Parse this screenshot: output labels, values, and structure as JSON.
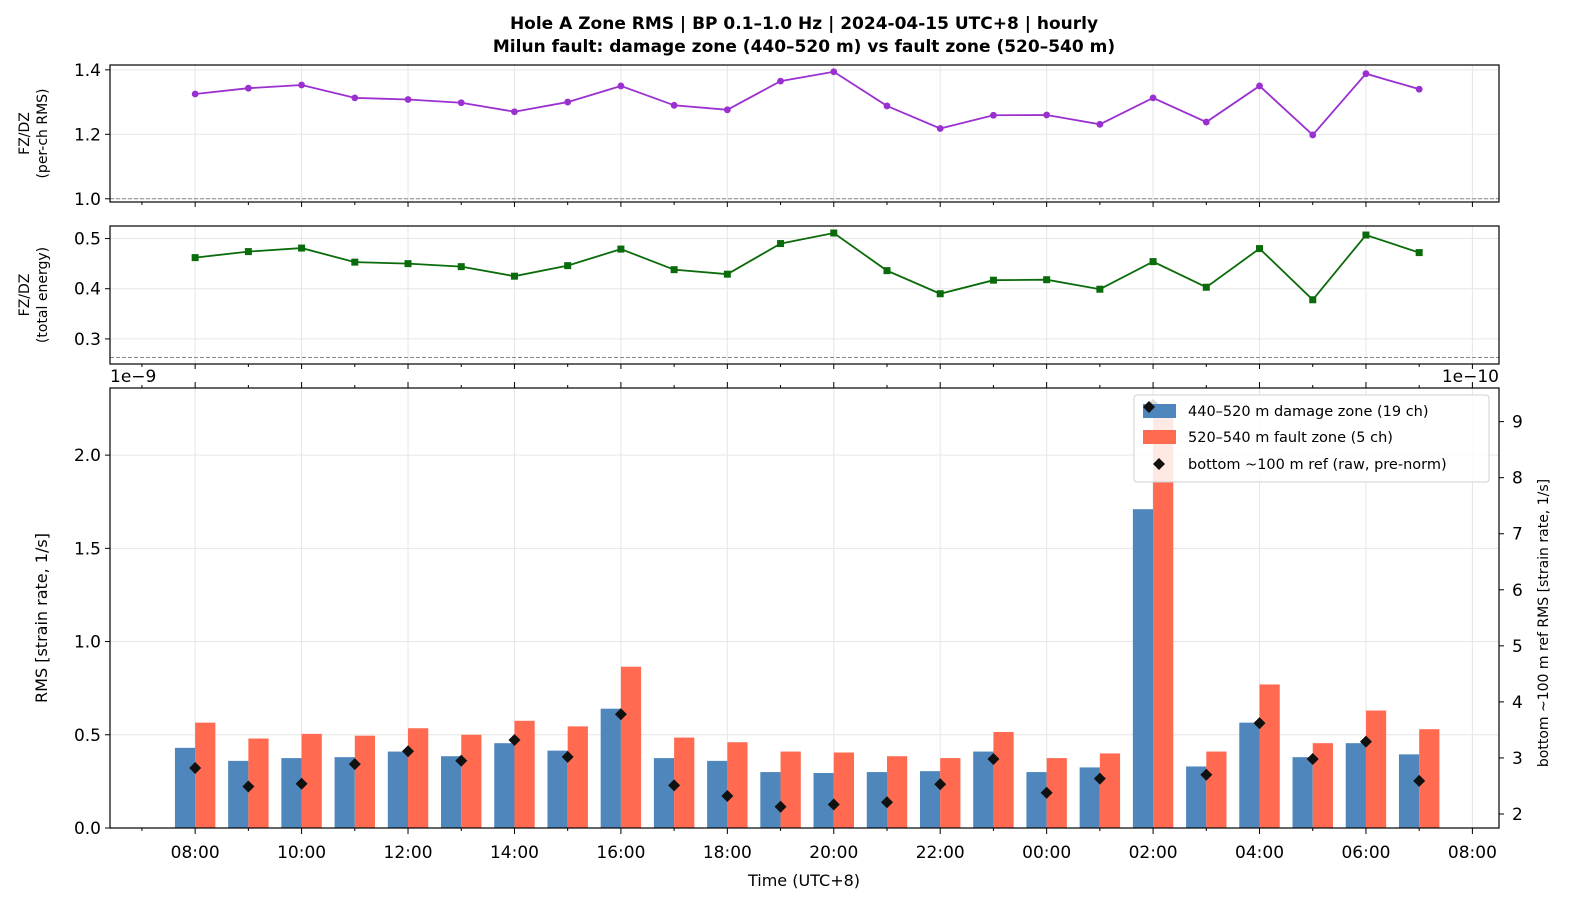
{
  "title_line1": "Hole A Zone RMS  |  BP 0.1–1.0 Hz  |  2024-04-15 UTC+8  |  hourly",
  "title_line2": "Milun fault: damage zone (440–520 m) vs fault zone (520–540 m)",
  "colors": {
    "ratio_rms": "#9b30d0",
    "ratio_energy": "#0a6b0a",
    "damage_zone": "#4f87bd",
    "fault_zone": "#ff6a50",
    "ref_marker": "#111111",
    "grid": "#e6e6e6"
  },
  "chart_data": [
    {
      "type": "line",
      "panel": "ratio_rms",
      "ylabel_line1": "FZ/DZ",
      "ylabel_line2": "(per-ch RMS)",
      "ylim": [
        0.99,
        1.415
      ],
      "yticks": [
        1.0,
        1.2,
        1.4
      ],
      "yticklabels": [
        "1.0",
        "1.2",
        "1.4"
      ],
      "reference_line": 1.0,
      "grid": true,
      "x": [
        "08:00",
        "09:00",
        "10:00",
        "11:00",
        "12:00",
        "13:00",
        "14:00",
        "15:00",
        "16:00",
        "17:00",
        "18:00",
        "19:00",
        "20:00",
        "21:00",
        "22:00",
        "23:00",
        "00:00",
        "01:00",
        "02:00",
        "03:00",
        "04:00",
        "05:00",
        "06:00",
        "07:00"
      ],
      "values": [
        1.325,
        1.343,
        1.353,
        1.313,
        1.308,
        1.298,
        1.27,
        1.3,
        1.35,
        1.29,
        1.276,
        1.365,
        1.394,
        1.288,
        1.218,
        1.259,
        1.26,
        1.231,
        1.313,
        1.238,
        1.35,
        1.198,
        1.388,
        1.34
      ]
    },
    {
      "type": "line",
      "panel": "ratio_energy",
      "ylabel_line1": "FZ/DZ",
      "ylabel_line2": "(total energy)",
      "ylim": [
        0.25,
        0.525
      ],
      "yticks": [
        0.3,
        0.4,
        0.5
      ],
      "yticklabels": [
        "0.3",
        "0.4",
        "0.5"
      ],
      "reference_line": 0.263,
      "grid": true,
      "x": [
        "08:00",
        "09:00",
        "10:00",
        "11:00",
        "12:00",
        "13:00",
        "14:00",
        "15:00",
        "16:00",
        "17:00",
        "18:00",
        "19:00",
        "20:00",
        "21:00",
        "22:00",
        "23:00",
        "00:00",
        "01:00",
        "02:00",
        "03:00",
        "04:00",
        "05:00",
        "06:00",
        "07:00"
      ],
      "values": [
        0.462,
        0.474,
        0.481,
        0.453,
        0.45,
        0.444,
        0.425,
        0.446,
        0.479,
        0.438,
        0.429,
        0.49,
        0.511,
        0.436,
        0.39,
        0.417,
        0.418,
        0.399,
        0.454,
        0.403,
        0.48,
        0.378,
        0.507,
        0.472
      ]
    },
    {
      "type": "bar",
      "panel": "zone_rms",
      "ylabel": "RMS  [strain rate, 1/s]",
      "ylabel_right": "bottom ~100 m ref RMS  [strain rate, 1/s]",
      "xlabel": "Time (UTC+8)",
      "offset_left": "1e−9",
      "offset_right": "1e−10",
      "ylim": [
        0,
        2.36
      ],
      "yticks": [
        0.0,
        0.5,
        1.0,
        1.5,
        2.0
      ],
      "yticklabels": [
        "0.0",
        "0.5",
        "1.0",
        "1.5",
        "2.0"
      ],
      "ylim_right": [
        1.75,
        9.6
      ],
      "yticks_right": [
        2,
        3,
        4,
        5,
        6,
        7,
        8,
        9
      ],
      "yticklabels_right": [
        "2",
        "3",
        "4",
        "5",
        "6",
        "7",
        "8",
        "9"
      ],
      "xlim_hours": [
        -1.6,
        24.5
      ],
      "xticks_hours": [
        0,
        2,
        4,
        6,
        8,
        10,
        12,
        14,
        16,
        18,
        20,
        22,
        24
      ],
      "xticklabels": [
        "08:00",
        "10:00",
        "12:00",
        "14:00",
        "16:00",
        "18:00",
        "20:00",
        "22:00",
        "00:00",
        "02:00",
        "04:00",
        "06:00",
        "08:00"
      ],
      "grid": true,
      "legend_position": "upper right",
      "categories": [
        "08:00",
        "09:00",
        "10:00",
        "11:00",
        "12:00",
        "13:00",
        "14:00",
        "15:00",
        "16:00",
        "17:00",
        "18:00",
        "19:00",
        "20:00",
        "21:00",
        "22:00",
        "23:00",
        "00:00",
        "01:00",
        "02:00",
        "03:00",
        "04:00",
        "05:00",
        "06:00",
        "07:00"
      ],
      "series": [
        {
          "name": "440–520 m  damage zone (19 ch)",
          "kind": "bar",
          "values": [
            0.43,
            0.36,
            0.375,
            0.38,
            0.41,
            0.385,
            0.455,
            0.415,
            0.64,
            0.375,
            0.36,
            0.3,
            0.295,
            0.3,
            0.305,
            0.41,
            0.3,
            0.325,
            1.71,
            0.33,
            0.565,
            0.38,
            0.455,
            0.395
          ]
        },
        {
          "name": "520–540 m  fault zone (5 ch)",
          "kind": "bar",
          "values": [
            0.565,
            0.48,
            0.505,
            0.495,
            0.535,
            0.5,
            0.575,
            0.545,
            0.865,
            0.485,
            0.46,
            0.41,
            0.405,
            0.385,
            0.375,
            0.515,
            0.375,
            0.4,
            2.27,
            0.41,
            0.77,
            0.455,
            0.63,
            0.53
          ]
        },
        {
          "name": "bottom ~100 m ref (raw, pre-norm)",
          "kind": "marker",
          "axis": "right",
          "values": [
            2.82,
            2.49,
            2.54,
            2.89,
            3.12,
            2.95,
            3.32,
            3.02,
            3.78,
            2.51,
            2.32,
            2.13,
            2.17,
            2.21,
            2.53,
            2.98,
            2.38,
            2.63,
            9.3,
            2.7,
            3.62,
            2.98,
            3.29,
            2.59
          ]
        }
      ]
    }
  ]
}
